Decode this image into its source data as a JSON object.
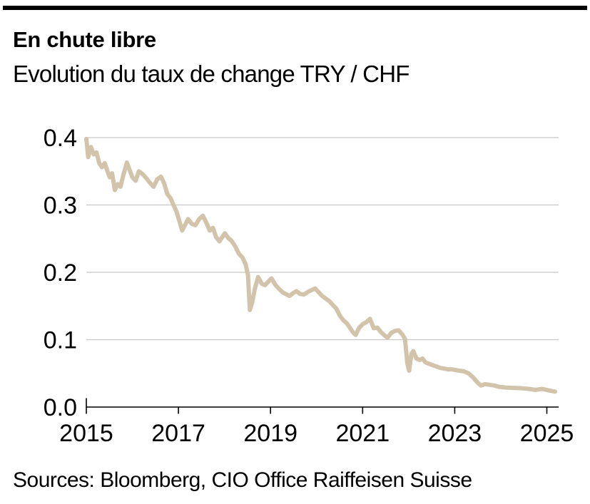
{
  "header": {
    "top_bar_color": "#000000",
    "title": "En chute libre",
    "subtitle": "Evolution du taux de change TRY / CHF"
  },
  "footer": {
    "sources": "Sources: Bloomberg, CIO Office Raiffeisen Suisse"
  },
  "chart_data": {
    "type": "line",
    "title": "En chute libre",
    "subtitle": "Evolution du taux de change TRY / CHF",
    "xlabel": "",
    "ylabel": "",
    "x_ticks": [
      2015,
      2017,
      2019,
      2021,
      2023,
      2025
    ],
    "x_tick_labels": [
      "2015",
      "2017",
      "2019",
      "2021",
      "2023",
      "2025"
    ],
    "y_ticks": [
      0,
      0.1,
      0.2,
      0.3,
      0.4
    ],
    "y_tick_labels": [
      "0.0",
      "0.1",
      "0.2",
      "0.3",
      "0.4"
    ],
    "xlim": [
      2015,
      2025.43
    ],
    "ylim": [
      0,
      0.4
    ],
    "grid": "horizontal-only",
    "legend": "none",
    "colors": {
      "line": "#d2c3ab",
      "gridline": "#c7c7c7",
      "axis": "#000000",
      "text": "#000000"
    },
    "series": [
      {
        "name": "TRY / CHF",
        "color": "#d2c3ab",
        "x_unit": "decimal_year",
        "points": [
          [
            2015.0,
            0.398
          ],
          [
            2015.02,
            0.385
          ],
          [
            2015.04,
            0.371
          ],
          [
            2015.1,
            0.386
          ],
          [
            2015.16,
            0.375
          ],
          [
            2015.22,
            0.378
          ],
          [
            2015.28,
            0.362
          ],
          [
            2015.34,
            0.356
          ],
          [
            2015.4,
            0.362
          ],
          [
            2015.46,
            0.35
          ],
          [
            2015.51,
            0.341
          ],
          [
            2015.56,
            0.347
          ],
          [
            2015.62,
            0.322
          ],
          [
            2015.68,
            0.331
          ],
          [
            2015.74,
            0.327
          ],
          [
            2015.81,
            0.346
          ],
          [
            2015.88,
            0.363
          ],
          [
            2015.94,
            0.352
          ],
          [
            2016.0,
            0.341
          ],
          [
            2016.07,
            0.336
          ],
          [
            2016.14,
            0.35
          ],
          [
            2016.22,
            0.346
          ],
          [
            2016.3,
            0.34
          ],
          [
            2016.38,
            0.333
          ],
          [
            2016.46,
            0.327
          ],
          [
            2016.54,
            0.338
          ],
          [
            2016.62,
            0.342
          ],
          [
            2016.69,
            0.332
          ],
          [
            2016.76,
            0.316
          ],
          [
            2016.83,
            0.31
          ],
          [
            2016.9,
            0.299
          ],
          [
            2016.96,
            0.29
          ],
          [
            2017.02,
            0.276
          ],
          [
            2017.08,
            0.262
          ],
          [
            2017.15,
            0.271
          ],
          [
            2017.21,
            0.279
          ],
          [
            2017.29,
            0.272
          ],
          [
            2017.37,
            0.27
          ],
          [
            2017.45,
            0.279
          ],
          [
            2017.53,
            0.284
          ],
          [
            2017.61,
            0.273
          ],
          [
            2017.68,
            0.262
          ],
          [
            2017.75,
            0.266
          ],
          [
            2017.82,
            0.252
          ],
          [
            2017.89,
            0.246
          ],
          [
            2017.95,
            0.252
          ],
          [
            2018.01,
            0.258
          ],
          [
            2018.08,
            0.251
          ],
          [
            2018.15,
            0.247
          ],
          [
            2018.23,
            0.239
          ],
          [
            2018.31,
            0.228
          ],
          [
            2018.39,
            0.222
          ],
          [
            2018.46,
            0.212
          ],
          [
            2018.51,
            0.196
          ],
          [
            2018.55,
            0.144
          ],
          [
            2018.6,
            0.155
          ],
          [
            2018.66,
            0.176
          ],
          [
            2018.73,
            0.193
          ],
          [
            2018.81,
            0.183
          ],
          [
            2018.88,
            0.181
          ],
          [
            2018.95,
            0.186
          ],
          [
            2019.02,
            0.191
          ],
          [
            2019.11,
            0.181
          ],
          [
            2019.19,
            0.175
          ],
          [
            2019.27,
            0.17
          ],
          [
            2019.41,
            0.165
          ],
          [
            2019.49,
            0.169
          ],
          [
            2019.56,
            0.172
          ],
          [
            2019.64,
            0.168
          ],
          [
            2019.72,
            0.167
          ],
          [
            2019.84,
            0.172
          ],
          [
            2019.97,
            0.176
          ],
          [
            2020.05,
            0.17
          ],
          [
            2020.12,
            0.165
          ],
          [
            2020.2,
            0.161
          ],
          [
            2020.28,
            0.157
          ],
          [
            2020.36,
            0.151
          ],
          [
            2020.43,
            0.146
          ],
          [
            2020.51,
            0.135
          ],
          [
            2020.58,
            0.129
          ],
          [
            2020.66,
            0.124
          ],
          [
            2020.73,
            0.117
          ],
          [
            2020.8,
            0.11
          ],
          [
            2020.85,
            0.107
          ],
          [
            2020.92,
            0.117
          ],
          [
            2021.0,
            0.123
          ],
          [
            2021.08,
            0.126
          ],
          [
            2021.16,
            0.131
          ],
          [
            2021.24,
            0.117
          ],
          [
            2021.32,
            0.118
          ],
          [
            2021.4,
            0.111
          ],
          [
            2021.48,
            0.106
          ],
          [
            2021.54,
            0.103
          ],
          [
            2021.62,
            0.11
          ],
          [
            2021.7,
            0.113
          ],
          [
            2021.78,
            0.114
          ],
          [
            2021.86,
            0.108
          ],
          [
            2021.92,
            0.101
          ],
          [
            2021.97,
            0.065
          ],
          [
            2022.01,
            0.054
          ],
          [
            2022.06,
            0.079
          ],
          [
            2022.1,
            0.083
          ],
          [
            2022.17,
            0.072
          ],
          [
            2022.24,
            0.07
          ],
          [
            2022.3,
            0.072
          ],
          [
            2022.37,
            0.066
          ],
          [
            2022.45,
            0.064
          ],
          [
            2022.53,
            0.062
          ],
          [
            2022.61,
            0.06
          ],
          [
            2022.69,
            0.058
          ],
          [
            2022.77,
            0.057
          ],
          [
            2022.85,
            0.056
          ],
          [
            2022.93,
            0.056
          ],
          [
            2023.01,
            0.055
          ],
          [
            2023.1,
            0.054
          ],
          [
            2023.2,
            0.053
          ],
          [
            2023.3,
            0.05
          ],
          [
            2023.4,
            0.044
          ],
          [
            2023.5,
            0.036
          ],
          [
            2023.57,
            0.032
          ],
          [
            2023.66,
            0.034
          ],
          [
            2023.76,
            0.033
          ],
          [
            2023.86,
            0.032
          ],
          [
            2023.96,
            0.03
          ],
          [
            2024.1,
            0.029
          ],
          [
            2024.26,
            0.0285
          ],
          [
            2024.43,
            0.028
          ],
          [
            2024.6,
            0.027
          ],
          [
            2024.75,
            0.0255
          ],
          [
            2024.9,
            0.027
          ],
          [
            2025.05,
            0.0245
          ],
          [
            2025.18,
            0.023
          ]
        ]
      }
    ]
  }
}
